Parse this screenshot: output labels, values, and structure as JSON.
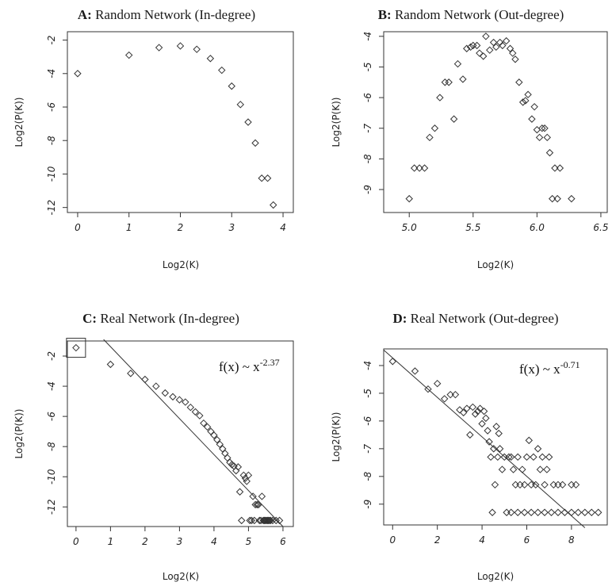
{
  "chart_data": [
    {
      "type": "scatter",
      "panel_letter": "A:",
      "title": "Random Network (In-degree)",
      "xlabel": "Log2(K)",
      "ylabel": "Log2(P(K))",
      "xlim": [
        -0.2,
        4.2
      ],
      "ylim": [
        -12.3,
        -1.5
      ],
      "xticks": [
        0,
        1,
        2,
        3,
        4
      ],
      "yticks": [
        -2,
        -4,
        -6,
        -8,
        -10,
        -12
      ],
      "points": [
        [
          0,
          -4.0
        ],
        [
          1,
          -2.9
        ],
        [
          1.585,
          -2.45
        ],
        [
          2,
          -2.35
        ],
        [
          2.32,
          -2.55
        ],
        [
          2.585,
          -3.1
        ],
        [
          2.807,
          -3.8
        ],
        [
          3,
          -4.75
        ],
        [
          3.17,
          -5.85
        ],
        [
          3.32,
          -6.9
        ],
        [
          3.46,
          -8.15
        ],
        [
          3.585,
          -10.25
        ],
        [
          3.7,
          -10.25
        ],
        [
          3.81,
          -11.85
        ]
      ]
    },
    {
      "type": "scatter",
      "panel_letter": "B:",
      "title": "Random Network (Out-degree)",
      "xlabel": "Log2(K)",
      "ylabel": "Log2(P(K))",
      "xlim": [
        4.8,
        6.55
      ],
      "ylim": [
        -9.75,
        -3.85
      ],
      "xticks": [
        5.0,
        5.5,
        6.0,
        6.5
      ],
      "xtick_labels": [
        "5.0",
        "5.5",
        "6.0",
        "6.5"
      ],
      "yticks": [
        -4,
        -5,
        -6,
        -7,
        -8,
        -9
      ],
      "points": [
        [
          5.0,
          -9.3
        ],
        [
          5.04,
          -8.3
        ],
        [
          5.08,
          -8.3
        ],
        [
          5.12,
          -8.3
        ],
        [
          5.16,
          -7.3
        ],
        [
          5.2,
          -7.0
        ],
        [
          5.24,
          -6.0
        ],
        [
          5.28,
          -5.5
        ],
        [
          5.31,
          -5.5
        ],
        [
          5.35,
          -6.7
        ],
        [
          5.38,
          -4.9
        ],
        [
          5.42,
          -5.4
        ],
        [
          5.45,
          -4.4
        ],
        [
          5.48,
          -4.35
        ],
        [
          5.5,
          -4.3
        ],
        [
          5.53,
          -4.3
        ],
        [
          5.55,
          -4.55
        ],
        [
          5.58,
          -4.65
        ],
        [
          5.6,
          -4.0
        ],
        [
          5.63,
          -4.45
        ],
        [
          5.66,
          -4.2
        ],
        [
          5.68,
          -4.35
        ],
        [
          5.71,
          -4.2
        ],
        [
          5.73,
          -4.3
        ],
        [
          5.76,
          -4.15
        ],
        [
          5.79,
          -4.4
        ],
        [
          5.81,
          -4.55
        ],
        [
          5.83,
          -4.75
        ],
        [
          5.86,
          -5.5
        ],
        [
          5.89,
          -6.15
        ],
        [
          5.91,
          -6.1
        ],
        [
          5.93,
          -5.9
        ],
        [
          5.96,
          -6.7
        ],
        [
          5.98,
          -6.3
        ],
        [
          6.0,
          -7.05
        ],
        [
          6.02,
          -7.3
        ],
        [
          6.04,
          -7.0
        ],
        [
          6.06,
          -7.0
        ],
        [
          6.08,
          -7.3
        ],
        [
          6.1,
          -7.8
        ],
        [
          6.12,
          -9.3
        ],
        [
          6.14,
          -8.3
        ],
        [
          6.16,
          -9.3
        ],
        [
          6.18,
          -8.3
        ],
        [
          6.27,
          -9.3
        ]
      ]
    },
    {
      "type": "scatter",
      "panel_letter": "C:",
      "title": "Real Network (In-degree)",
      "xlabel": "Log2(K)",
      "ylabel": "Log2(P(K))",
      "xlim": [
        -0.25,
        6.3
      ],
      "ylim": [
        -13.3,
        -1.0
      ],
      "xticks": [
        0,
        1,
        2,
        3,
        4,
        5,
        6
      ],
      "yticks": [
        -2,
        -4,
        -6,
        -8,
        -10,
        -12
      ],
      "annotation_base": "f(x) ~ x",
      "annotation_exp": "-2.37",
      "fit_line": [
        [
          0.8,
          -0.9
        ],
        [
          6.0,
          -13.3
        ]
      ],
      "highlight_point": [
        0,
        -1.45
      ],
      "points": [
        [
          0,
          -1.45
        ],
        [
          1,
          -2.55
        ],
        [
          1.585,
          -3.15
        ],
        [
          2,
          -3.55
        ],
        [
          2.32,
          -4.0
        ],
        [
          2.585,
          -4.45
        ],
        [
          2.807,
          -4.7
        ],
        [
          3,
          -4.9
        ],
        [
          3.17,
          -5.05
        ],
        [
          3.32,
          -5.4
        ],
        [
          3.46,
          -5.7
        ],
        [
          3.585,
          -5.95
        ],
        [
          3.7,
          -6.45
        ],
        [
          3.81,
          -6.7
        ],
        [
          3.91,
          -7.0
        ],
        [
          4.0,
          -7.25
        ],
        [
          4.09,
          -7.55
        ],
        [
          4.17,
          -7.85
        ],
        [
          4.25,
          -8.15
        ],
        [
          4.32,
          -8.45
        ],
        [
          4.39,
          -8.75
        ],
        [
          4.46,
          -9.05
        ],
        [
          4.52,
          -9.2
        ],
        [
          4.58,
          -9.3
        ],
        [
          4.64,
          -9.6
        ],
        [
          4.7,
          -9.35
        ],
        [
          4.75,
          -11.0
        ],
        [
          4.8,
          -12.9
        ],
        [
          4.86,
          -9.9
        ],
        [
          4.91,
          -10.1
        ],
        [
          4.95,
          -10.3
        ],
        [
          5.0,
          -9.9
        ],
        [
          5.04,
          -12.9
        ],
        [
          5.09,
          -12.9
        ],
        [
          5.13,
          -11.3
        ],
        [
          5.17,
          -12.9
        ],
        [
          5.2,
          -11.85
        ],
        [
          5.25,
          -11.85
        ],
        [
          5.29,
          -11.85
        ],
        [
          5.32,
          -12.9
        ],
        [
          5.36,
          -12.9
        ],
        [
          5.39,
          -11.3
        ],
        [
          5.43,
          -12.9
        ],
        [
          5.46,
          -12.9
        ],
        [
          5.49,
          -12.9
        ],
        [
          5.52,
          -12.9
        ],
        [
          5.55,
          -12.9
        ],
        [
          5.58,
          -12.9
        ],
        [
          5.61,
          -12.9
        ],
        [
          5.64,
          -12.9
        ],
        [
          5.7,
          -12.9
        ],
        [
          5.8,
          -12.9
        ],
        [
          5.9,
          -12.9
        ]
      ]
    },
    {
      "type": "scatter",
      "panel_letter": "D:",
      "title": "Real Network (Out-degree)",
      "xlabel": "Log2(K)",
      "ylabel": "Log2(P(K))",
      "xlim": [
        -0.4,
        9.6
      ],
      "ylim": [
        -9.75,
        -3.4
      ],
      "xticks": [
        0,
        2,
        4,
        6,
        8
      ],
      "yticks": [
        -4,
        -5,
        -6,
        -7,
        -8,
        -9
      ],
      "annotation_base": "f(x) ~ x",
      "annotation_exp": "-0.71",
      "fit_line": [
        [
          -0.4,
          -3.44
        ],
        [
          8.6,
          -9.85
        ]
      ],
      "points": [
        [
          0,
          -3.85
        ],
        [
          1,
          -4.2
        ],
        [
          1.585,
          -4.85
        ],
        [
          2,
          -4.65
        ],
        [
          2.32,
          -5.2
        ],
        [
          2.585,
          -5.05
        ],
        [
          2.807,
          -5.05
        ],
        [
          3,
          -5.6
        ],
        [
          3.17,
          -5.7
        ],
        [
          3.32,
          -5.55
        ],
        [
          3.46,
          -6.5
        ],
        [
          3.585,
          -5.5
        ],
        [
          3.7,
          -5.75
        ],
        [
          3.81,
          -5.65
        ],
        [
          3.91,
          -5.55
        ],
        [
          4.0,
          -6.1
        ],
        [
          4.09,
          -5.65
        ],
        [
          4.17,
          -5.9
        ],
        [
          4.25,
          -6.35
        ],
        [
          4.32,
          -6.75
        ],
        [
          4.39,
          -7.3
        ],
        [
          4.46,
          -9.3
        ],
        [
          4.52,
          -7.0
        ],
        [
          4.58,
          -8.3
        ],
        [
          4.64,
          -6.2
        ],
        [
          4.7,
          -7.3
        ],
        [
          4.75,
          -6.45
        ],
        [
          4.8,
          -7.0
        ],
        [
          4.9,
          -7.75
        ],
        [
          5.0,
          -7.3
        ],
        [
          5.1,
          -9.3
        ],
        [
          5.2,
          -7.3
        ],
        [
          5.3,
          -7.3
        ],
        [
          5.4,
          -7.75
        ],
        [
          5.5,
          -8.3
        ],
        [
          5.6,
          -7.3
        ],
        [
          5.7,
          -8.3
        ],
        [
          5.8,
          -7.75
        ],
        [
          5.9,
          -8.3
        ],
        [
          6.0,
          -7.3
        ],
        [
          6.1,
          -6.7
        ],
        [
          6.2,
          -8.3
        ],
        [
          6.3,
          -7.3
        ],
        [
          6.4,
          -8.3
        ],
        [
          6.5,
          -7.0
        ],
        [
          6.6,
          -7.75
        ],
        [
          6.7,
          -7.3
        ],
        [
          6.8,
          -8.3
        ],
        [
          6.9,
          -7.75
        ],
        [
          7.0,
          -7.3
        ],
        [
          7.2,
          -8.3
        ],
        [
          7.4,
          -8.3
        ],
        [
          7.6,
          -8.3
        ],
        [
          8.0,
          -8.3
        ],
        [
          8.2,
          -8.3
        ],
        [
          5.3,
          -9.3
        ],
        [
          5.6,
          -9.3
        ],
        [
          5.9,
          -9.3
        ],
        [
          6.2,
          -9.3
        ],
        [
          6.5,
          -9.3
        ],
        [
          6.8,
          -9.3
        ],
        [
          7.1,
          -9.3
        ],
        [
          7.4,
          -9.3
        ],
        [
          7.7,
          -9.3
        ],
        [
          8.0,
          -9.3
        ],
        [
          8.3,
          -9.3
        ],
        [
          8.6,
          -9.3
        ],
        [
          8.9,
          -9.3
        ],
        [
          9.2,
          -9.3
        ]
      ]
    }
  ]
}
